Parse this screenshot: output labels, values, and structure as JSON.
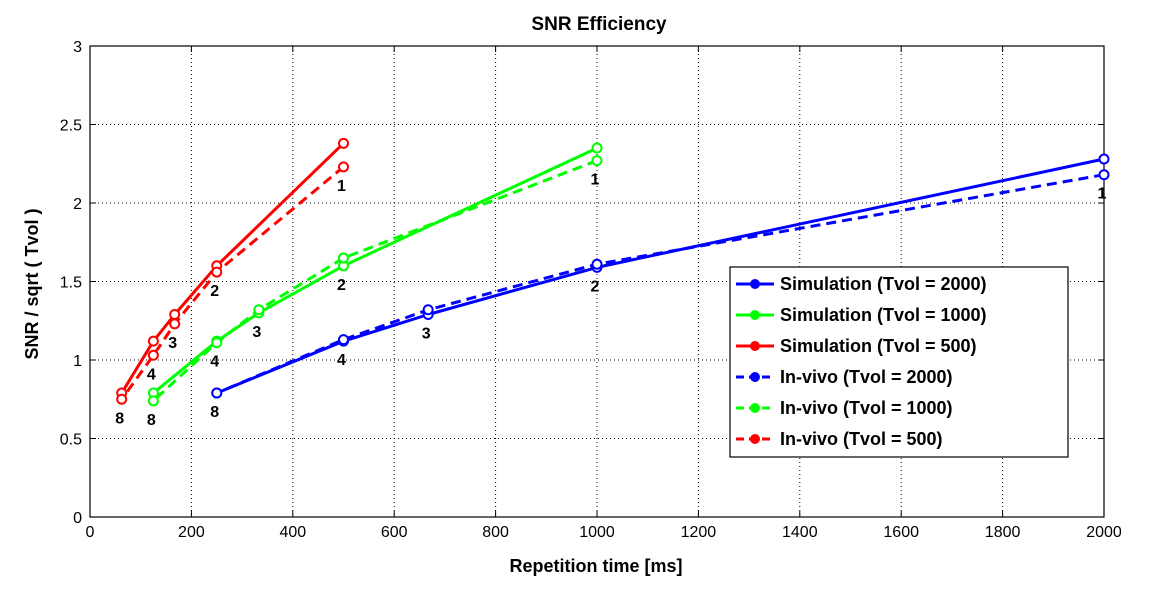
{
  "chart_data": {
    "type": "line",
    "title": "SNR Efficiency",
    "xlabel": "Repetition time [ms]",
    "ylabel": "SNR / sqrt ( Tvol )",
    "xlim": [
      0,
      2000
    ],
    "ylim": [
      0,
      3
    ],
    "xticks": [
      0,
      200,
      400,
      600,
      800,
      1000,
      1200,
      1400,
      1600,
      1800,
      2000
    ],
    "yticks": [
      0,
      0.5,
      1,
      1.5,
      2,
      2.5,
      3
    ],
    "grid": true,
    "legend_position": "right",
    "series": [
      {
        "name": "Simulation (Tvol = 2000)",
        "color": "#0000ff",
        "style": "solid",
        "x": [
          2000,
          1000,
          667,
          500,
          250
        ],
        "y": [
          2.28,
          1.59,
          1.29,
          1.12,
          0.79
        ]
      },
      {
        "name": "Simulation (Tvol = 1000)",
        "color": "#00ff00",
        "style": "solid",
        "x": [
          1000,
          500,
          333,
          250,
          125
        ],
        "y": [
          2.35,
          1.6,
          1.3,
          1.12,
          0.79
        ]
      },
      {
        "name": "Simulation (Tvol = 500)",
        "color": "#ff0000",
        "style": "solid",
        "x": [
          500,
          250,
          167,
          125,
          62.5
        ],
        "y": [
          2.38,
          1.6,
          1.29,
          1.12,
          0.79
        ]
      },
      {
        "name": "In-vivo (Tvol = 2000)",
        "color": "#0000ff",
        "style": "dashed",
        "x": [
          2000,
          1000,
          667,
          500,
          250
        ],
        "y": [
          2.18,
          1.61,
          1.32,
          1.13,
          0.79
        ]
      },
      {
        "name": "In-vivo (Tvol = 1000)",
        "color": "#00ff00",
        "style": "dashed",
        "x": [
          1000,
          500,
          333,
          250,
          125
        ],
        "y": [
          2.27,
          1.65,
          1.32,
          1.11,
          0.74
        ]
      },
      {
        "name": "In-vivo (Tvol = 500)",
        "color": "#ff0000",
        "style": "dashed",
        "x": [
          500,
          250,
          167,
          125,
          62.5
        ],
        "y": [
          2.23,
          1.56,
          1.23,
          1.03,
          0.75
        ]
      }
    ],
    "annotations": [
      {
        "text": "1",
        "x": 2000,
        "y": 2.18
      },
      {
        "text": "2",
        "x": 1000,
        "y": 1.59
      },
      {
        "text": "3",
        "x": 667,
        "y": 1.29
      },
      {
        "text": "4",
        "x": 500,
        "y": 1.12
      },
      {
        "text": "8",
        "x": 250,
        "y": 0.79
      },
      {
        "text": "1",
        "x": 1000,
        "y": 2.27
      },
      {
        "text": "2",
        "x": 500,
        "y": 1.6
      },
      {
        "text": "3",
        "x": 333,
        "y": 1.3
      },
      {
        "text": "4",
        "x": 250,
        "y": 1.11
      },
      {
        "text": "8",
        "x": 125,
        "y": 0.74
      },
      {
        "text": "1",
        "x": 500,
        "y": 2.23
      },
      {
        "text": "2",
        "x": 250,
        "y": 1.56
      },
      {
        "text": "3",
        "x": 167,
        "y": 1.23
      },
      {
        "text": "4",
        "x": 125,
        "y": 1.03
      },
      {
        "text": "8",
        "x": 62.5,
        "y": 0.75
      }
    ]
  }
}
